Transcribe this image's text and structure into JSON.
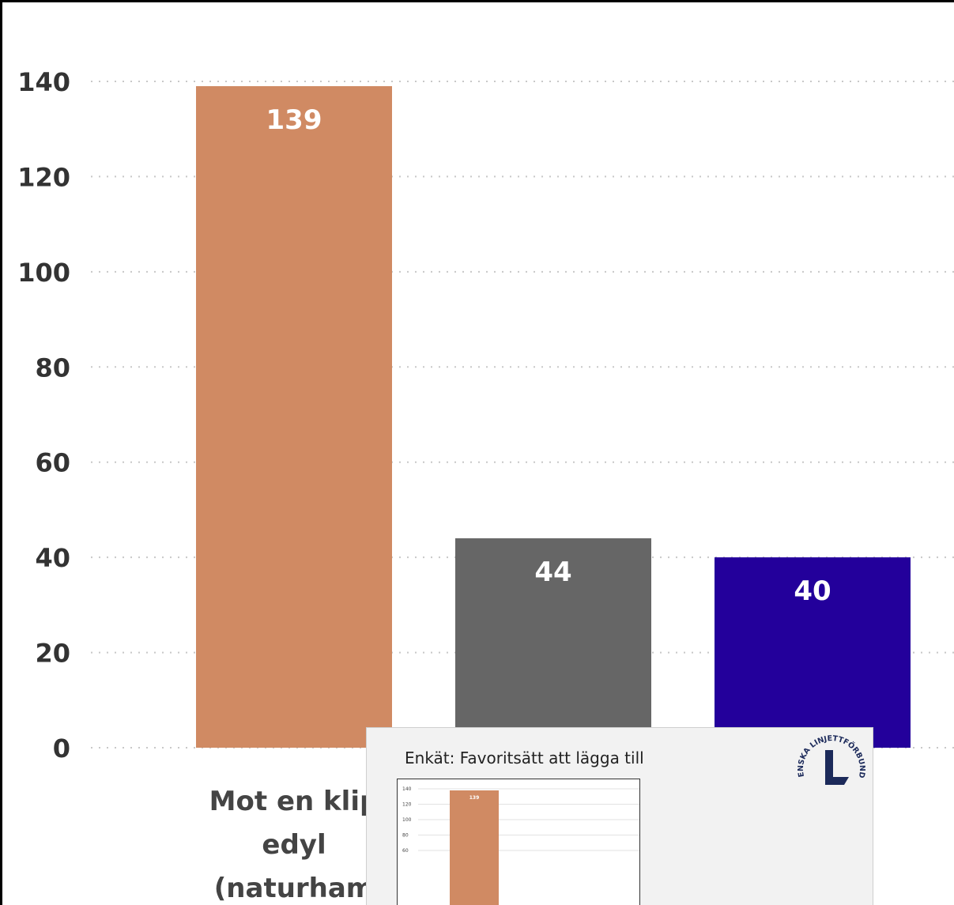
{
  "chart_data": {
    "type": "bar",
    "categories": [
      "Mot en klipp edyl (naturham",
      "",
      ""
    ],
    "category_label_lines": [
      [
        "Mot en klip",
        "edyl",
        "(naturham"
      ],
      [],
      []
    ],
    "values": [
      139,
      44,
      40
    ],
    "data_labels": [
      "139",
      "44",
      "40"
    ],
    "colors": [
      "#d08a63",
      "#666666",
      "#23009b"
    ],
    "ylim": [
      0,
      140
    ],
    "yticks": [
      0,
      20,
      40,
      60,
      80,
      100,
      120,
      140
    ],
    "ytick_labels": [
      "0",
      "20",
      "40",
      "60",
      "80",
      "100",
      "120",
      "140"
    ],
    "grid": true,
    "title": "",
    "xlabel": "",
    "ylabel": ""
  },
  "popup": {
    "title": "Enkät: Favoritsätt att lägga till",
    "logo_text": "SVENSKA LINJETTFÖRBUNDET",
    "logo_icon": "svenska-linjettforbundet-logo",
    "mini_chart": {
      "values": [
        139
      ],
      "data_labels": [
        "139"
      ],
      "ytick_labels": [
        "140",
        "120",
        "100",
        "80",
        "60"
      ]
    }
  }
}
